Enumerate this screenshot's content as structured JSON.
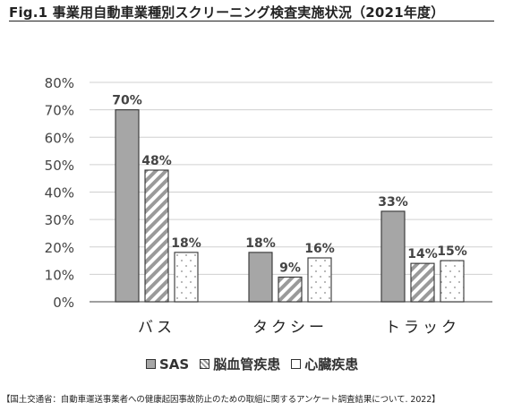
{
  "title": "Fig.1 事業用自動車業種別スクリーニング検査実施状況（2021年度）",
  "footer": "【国土交通省：自動車運送事業者への健康起因事故防止のための取組に関するアンケート調査結果について. 2022】",
  "chart_data": {
    "type": "bar",
    "categories": [
      "バス",
      "タクシー",
      "トラック"
    ],
    "series": [
      {
        "name": "SAS",
        "values": [
          70,
          18,
          33
        ],
        "pattern": "solid-gray",
        "color": "#a6a6a6"
      },
      {
        "name": "脳血管疾患",
        "values": [
          48,
          9,
          14
        ],
        "pattern": "diagonal-stripes",
        "color": "#9a9a9a"
      },
      {
        "name": "心臓疾患",
        "values": [
          18,
          16,
          15
        ],
        "pattern": "dots",
        "color": "#ffffff"
      }
    ],
    "data_labels": [
      [
        "70%",
        "48%",
        "18%"
      ],
      [
        "18%",
        "9%",
        "16%"
      ],
      [
        "33%",
        "14%",
        "15%"
      ]
    ],
    "y_ticks": [
      "0%",
      "10%",
      "20%",
      "30%",
      "40%",
      "50%",
      "60%",
      "70%",
      "80%"
    ],
    "ylim": [
      0,
      80
    ],
    "grid": true,
    "legend_position": "bottom"
  }
}
